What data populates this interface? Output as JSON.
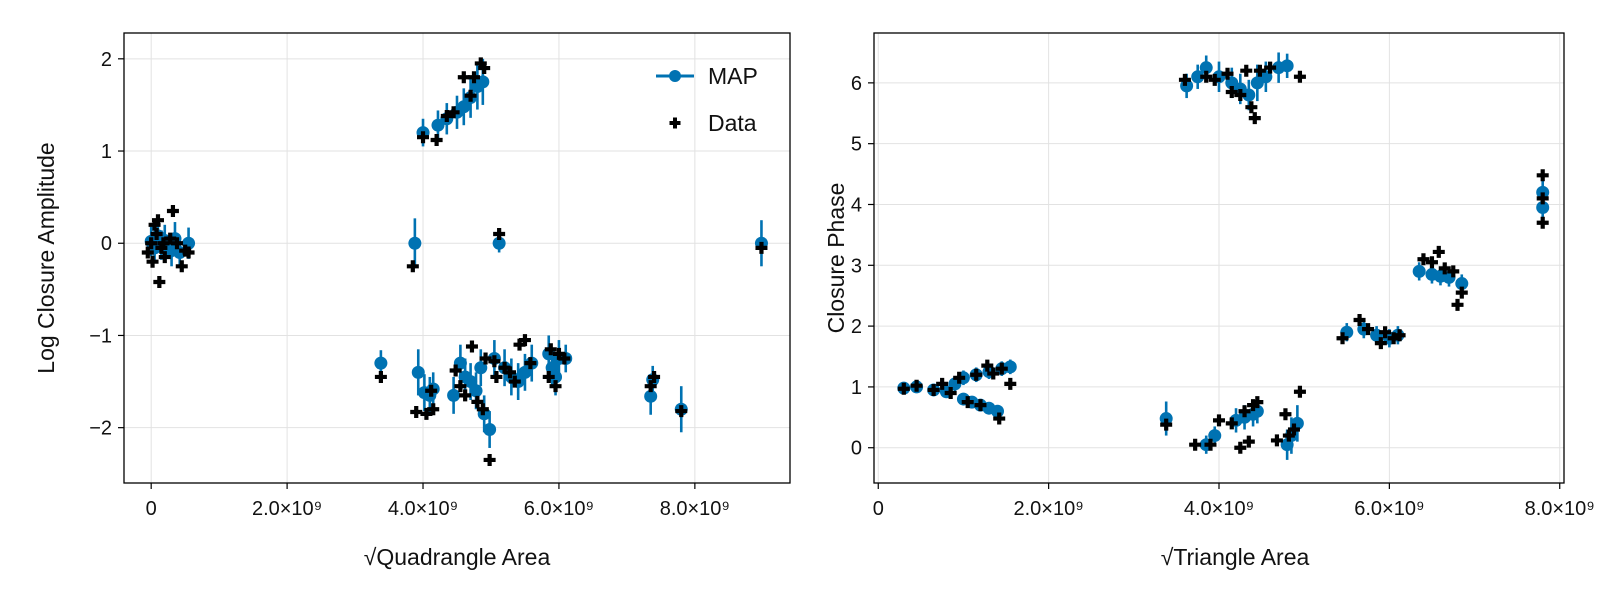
{
  "colors": {
    "map": "#0072b2",
    "data": "#000000",
    "grid": "#e2e2e2",
    "frame": "#000000"
  },
  "legend": {
    "map_label": "MAP",
    "data_label": "Data",
    "placement": "top-right of left panel"
  },
  "chart_data": [
    {
      "type": "scatter",
      "xlabel": "√Quadrangle Area",
      "ylabel": "Log Closure Amplitude",
      "xlim": [
        -400000000.0,
        9400000000.0
      ],
      "ylim": [
        -2.6,
        2.28
      ],
      "xticks": [
        0,
        2000000000.0,
        4000000000.0,
        6000000000.0,
        8000000000.0
      ],
      "xtick_labels": [
        "0",
        "2.0×10⁹",
        "4.0×10⁹",
        "6.0×10⁹",
        "8.0×10⁹"
      ],
      "yticks": [
        -2,
        -1,
        0,
        1,
        2
      ],
      "ytick_labels": [
        "−2",
        "−1",
        "0",
        "1",
        "2"
      ],
      "grid": true,
      "legend": true,
      "series": [
        {
          "name": "MAP",
          "marker": "circle",
          "error_bars": true,
          "points": [
            [
              0.0,
              0.02,
              0.16
            ],
            [
              50000000.0,
              -0.05,
              0.16
            ],
            [
              100000000.0,
              0.08,
              0.18
            ],
            [
              150000000.0,
              -0.02,
              0.16
            ],
            [
              200000000.0,
              0.03,
              0.17
            ],
            [
              300000000.0,
              -0.08,
              0.17
            ],
            [
              350000000.0,
              0.05,
              0.18
            ],
            [
              420000000.0,
              -0.1,
              0.17
            ],
            [
              550000000.0,
              0.0,
              0.17
            ],
            [
              3380000000.0,
              -1.3,
              0.14
            ],
            [
              3880000000.0,
              0.0,
              0.27
            ],
            [
              3930000000.0,
              -1.4,
              0.25
            ],
            [
              4020000000.0,
              -1.62,
              0.2
            ],
            [
              4100000000.0,
              -1.65,
              0.2
            ],
            [
              4150000000.0,
              -1.58,
              0.18
            ],
            [
              4000000000.0,
              1.2,
              0.15
            ],
            [
              4220000000.0,
              1.28,
              0.16
            ],
            [
              4350000000.0,
              1.35,
              0.17
            ],
            [
              4500000000.0,
              1.42,
              0.18
            ],
            [
              4600000000.0,
              1.48,
              0.2
            ],
            [
              4700000000.0,
              1.58,
              0.22
            ],
            [
              4800000000.0,
              1.7,
              0.25
            ],
            [
              4880000000.0,
              1.75,
              0.25
            ],
            [
              4450000000.0,
              -1.65,
              0.2
            ],
            [
              4550000000.0,
              -1.3,
              0.2
            ],
            [
              4620000000.0,
              -1.45,
              0.2
            ],
            [
              4700000000.0,
              -1.5,
              0.2
            ],
            [
              4780000000.0,
              -1.6,
              0.2
            ],
            [
              4850000000.0,
              -1.35,
              0.2
            ],
            [
              4900000000.0,
              -1.85,
              0.2
            ],
            [
              4980000000.0,
              -2.02,
              0.2
            ],
            [
              5050000000.0,
              -1.25,
              0.2
            ],
            [
              5120000000.0,
              0.0,
              0.1
            ],
            [
              5200000000.0,
              -1.35,
              0.2
            ],
            [
              5300000000.0,
              -1.45,
              0.2
            ],
            [
              5400000000.0,
              -1.5,
              0.2
            ],
            [
              5500000000.0,
              -1.4,
              0.2
            ],
            [
              5600000000.0,
              -1.3,
              0.2
            ],
            [
              5850000000.0,
              -1.2,
              0.2
            ],
            [
              5900000000.0,
              -1.35,
              0.2
            ],
            [
              5950000000.0,
              -1.45,
              0.2
            ],
            [
              6000000000.0,
              -1.25,
              0.2
            ],
            [
              6100000000.0,
              -1.25,
              0.15
            ],
            [
              7350000000.0,
              -1.66,
              0.2
            ],
            [
              7380000000.0,
              -1.48,
              0.15
            ],
            [
              7800000000.0,
              -1.8,
              0.25
            ],
            [
              8980000000.0,
              0.0,
              0.25
            ]
          ]
        },
        {
          "name": "Data",
          "marker": "plus",
          "points": [
            [
              -50000000.0,
              -0.1
            ],
            [
              0.0,
              0.0
            ],
            [
              20000000.0,
              -0.2
            ],
            [
              50000000.0,
              0.2
            ],
            [
              80000000.0,
              0.1
            ],
            [
              100000000.0,
              0.25
            ],
            [
              120000000.0,
              -0.42
            ],
            [
              150000000.0,
              -0.05
            ],
            [
              180000000.0,
              0.0
            ],
            [
              200000000.0,
              -0.15
            ],
            [
              280000000.0,
              0.05
            ],
            [
              320000000.0,
              0.35
            ],
            [
              380000000.0,
              0.0
            ],
            [
              450000000.0,
              -0.25
            ],
            [
              500000000.0,
              -0.08
            ],
            [
              550000000.0,
              -0.1
            ],
            [
              3380000000.0,
              -1.45
            ],
            [
              3850000000.0,
              -0.25
            ],
            [
              3900000000.0,
              -1.83
            ],
            [
              4000000000.0,
              1.15
            ],
            [
              4050000000.0,
              -1.85
            ],
            [
              4120000000.0,
              -1.6
            ],
            [
              4150000000.0,
              -1.8
            ],
            [
              4200000000.0,
              1.12
            ],
            [
              4350000000.0,
              1.38
            ],
            [
              4450000000.0,
              1.42
            ],
            [
              4480000000.0,
              -1.38
            ],
            [
              4550000000.0,
              -1.55
            ],
            [
              4600000000.0,
              1.8
            ],
            [
              4620000000.0,
              -1.65
            ],
            [
              4700000000.0,
              1.6
            ],
            [
              4720000000.0,
              -1.12
            ],
            [
              4750000000.0,
              1.8
            ],
            [
              4800000000.0,
              -1.72
            ],
            [
              4850000000.0,
              1.95
            ],
            [
              4900000000.0,
              1.9
            ],
            [
              4880000000.0,
              -1.8
            ],
            [
              4920000000.0,
              -1.25
            ],
            [
              4980000000.0,
              -2.35
            ],
            [
              5050000000.0,
              -1.28
            ],
            [
              5080000000.0,
              -1.45
            ],
            [
              5120000000.0,
              0.1
            ],
            [
              5200000000.0,
              -1.35
            ],
            [
              5280000000.0,
              -1.4
            ],
            [
              5350000000.0,
              -1.5
            ],
            [
              5420000000.0,
              -1.1
            ],
            [
              5500000000.0,
              -1.05
            ],
            [
              5580000000.0,
              -1.3
            ],
            [
              5850000000.0,
              -1.45
            ],
            [
              5880000000.0,
              -1.15
            ],
            [
              5950000000.0,
              -1.55
            ],
            [
              6000000000.0,
              -1.2
            ],
            [
              6080000000.0,
              -1.25
            ],
            [
              7350000000.0,
              -1.55
            ],
            [
              7400000000.0,
              -1.45
            ],
            [
              7800000000.0,
              -1.82
            ],
            [
              8980000000.0,
              -0.05
            ]
          ]
        }
      ]
    },
    {
      "type": "scatter",
      "xlabel": "√Triangle Area",
      "ylabel": "Closure Phase",
      "xlim": [
        -50000000.0,
        8050000000.0
      ],
      "ylim": [
        -0.58,
        6.82
      ],
      "xticks": [
        0,
        2000000000.0,
        4000000000.0,
        6000000000.0,
        8000000000.0
      ],
      "xtick_labels": [
        "0",
        "2.0×10⁹",
        "4.0×10⁹",
        "6.0×10⁹",
        "8.0×10⁹"
      ],
      "yticks": [
        0,
        1,
        2,
        3,
        4,
        5,
        6
      ],
      "ytick_labels": [
        "0",
        "1",
        "2",
        "3",
        "4",
        "5",
        "6"
      ],
      "grid": true,
      "legend": false,
      "series": [
        {
          "name": "MAP",
          "marker": "circle",
          "error_bars": true,
          "points": [
            [
              300000000.0,
              0.98,
              0.1
            ],
            [
              450000000.0,
              1.0,
              0.1
            ],
            [
              650000000.0,
              0.95,
              0.1
            ],
            [
              800000000.0,
              0.92,
              0.1
            ],
            [
              900000000.0,
              1.05,
              0.12
            ],
            [
              1000000000.0,
              0.8,
              0.1
            ],
            [
              1100000000.0,
              0.75,
              0.1
            ],
            [
              1200000000.0,
              0.7,
              0.1
            ],
            [
              1300000000.0,
              0.65,
              0.1
            ],
            [
              1400000000.0,
              0.6,
              0.1
            ],
            [
              1000000000.0,
              1.15,
              0.12
            ],
            [
              1150000000.0,
              1.2,
              0.12
            ],
            [
              1300000000.0,
              1.25,
              0.12
            ],
            [
              1450000000.0,
              1.3,
              0.12
            ],
            [
              1550000000.0,
              1.33,
              0.12
            ],
            [
              3380000000.0,
              0.48,
              0.28
            ],
            [
              3850000000.0,
              0.05,
              0.15
            ],
            [
              3950000000.0,
              0.2,
              0.15
            ],
            [
              4200000000.0,
              0.45,
              0.2
            ],
            [
              4300000000.0,
              0.5,
              0.2
            ],
            [
              4400000000.0,
              0.55,
              0.2
            ],
            [
              4450000000.0,
              0.6,
              0.2
            ],
            [
              4800000000.0,
              0.05,
              0.25
            ],
            [
              4850000000.0,
              0.2,
              0.3
            ],
            [
              4920000000.0,
              0.4,
              0.3
            ],
            [
              3620000000.0,
              5.95,
              0.2
            ],
            [
              3750000000.0,
              6.1,
              0.2
            ],
            [
              3850000000.0,
              6.25,
              0.2
            ],
            [
              4000000000.0,
              6.1,
              0.25
            ],
            [
              4150000000.0,
              6.0,
              0.25
            ],
            [
              4250000000.0,
              5.9,
              0.25
            ],
            [
              4350000000.0,
              5.8,
              0.25
            ],
            [
              4450000000.0,
              6.0,
              0.3
            ],
            [
              4550000000.0,
              6.1,
              0.25
            ],
            [
              4700000000.0,
              6.25,
              0.25
            ],
            [
              4800000000.0,
              6.28,
              0.2
            ],
            [
              5500000000.0,
              1.9,
              0.15
            ],
            [
              5700000000.0,
              1.95,
              0.15
            ],
            [
              5850000000.0,
              1.85,
              0.15
            ],
            [
              6000000000.0,
              1.8,
              0.15
            ],
            [
              6100000000.0,
              1.85,
              0.15
            ],
            [
              6350000000.0,
              2.9,
              0.15
            ],
            [
              6500000000.0,
              2.85,
              0.15
            ],
            [
              6600000000.0,
              2.82,
              0.15
            ],
            [
              6700000000.0,
              2.8,
              0.15
            ],
            [
              6850000000.0,
              2.7,
              0.15
            ],
            [
              7800000000.0,
              3.95,
              0.2
            ],
            [
              7800000000.0,
              4.2,
              0.2
            ]
          ]
        },
        {
          "name": "Data",
          "marker": "plus",
          "points": [
            [
              300000000.0,
              0.97
            ],
            [
              450000000.0,
              1.02
            ],
            [
              650000000.0,
              0.95
            ],
            [
              750000000.0,
              1.05
            ],
            [
              850000000.0,
              0.9
            ],
            [
              950000000.0,
              1.15
            ],
            [
              1050000000.0,
              0.75
            ],
            [
              1150000000.0,
              1.2
            ],
            [
              1200000000.0,
              0.7
            ],
            [
              1280000000.0,
              1.35
            ],
            [
              1350000000.0,
              1.22
            ],
            [
              1420000000.0,
              0.48
            ],
            [
              1450000000.0,
              1.3
            ],
            [
              1550000000.0,
              1.05
            ],
            [
              3380000000.0,
              0.38
            ],
            [
              3720000000.0,
              0.05
            ],
            [
              3900000000.0,
              0.05
            ],
            [
              4000000000.0,
              0.45
            ],
            [
              4150000000.0,
              0.4
            ],
            [
              4250000000.0,
              0.0
            ],
            [
              4300000000.0,
              0.6
            ],
            [
              4350000000.0,
              0.1
            ],
            [
              4400000000.0,
              0.7
            ],
            [
              4450000000.0,
              0.75
            ],
            [
              4680000000.0,
              0.12
            ],
            [
              4780000000.0,
              0.55
            ],
            [
              4820000000.0,
              0.2
            ],
            [
              4880000000.0,
              0.3
            ],
            [
              4950000000.0,
              0.92
            ],
            [
              3600000000.0,
              6.05
            ],
            [
              3850000000.0,
              6.1
            ],
            [
              3950000000.0,
              6.05
            ],
            [
              4100000000.0,
              6.15
            ],
            [
              4150000000.0,
              5.85
            ],
            [
              4250000000.0,
              5.8
            ],
            [
              4320000000.0,
              6.2
            ],
            [
              4380000000.0,
              5.6
            ],
            [
              4420000000.0,
              5.42
            ],
            [
              4480000000.0,
              6.2
            ],
            [
              4600000000.0,
              6.25
            ],
            [
              4950000000.0,
              6.1
            ],
            [
              5450000000.0,
              1.8
            ],
            [
              5650000000.0,
              2.1
            ],
            [
              5750000000.0,
              1.95
            ],
            [
              5900000000.0,
              1.72
            ],
            [
              5950000000.0,
              1.9
            ],
            [
              6050000000.0,
              1.8
            ],
            [
              6120000000.0,
              1.85
            ],
            [
              6400000000.0,
              3.1
            ],
            [
              6500000000.0,
              3.05
            ],
            [
              6580000000.0,
              3.22
            ],
            [
              6650000000.0,
              2.95
            ],
            [
              6750000000.0,
              2.9
            ],
            [
              6800000000.0,
              2.35
            ],
            [
              6850000000.0,
              2.55
            ],
            [
              7800000000.0,
              3.7
            ],
            [
              7800000000.0,
              4.1
            ],
            [
              7800000000.0,
              4.48
            ]
          ]
        }
      ]
    }
  ]
}
